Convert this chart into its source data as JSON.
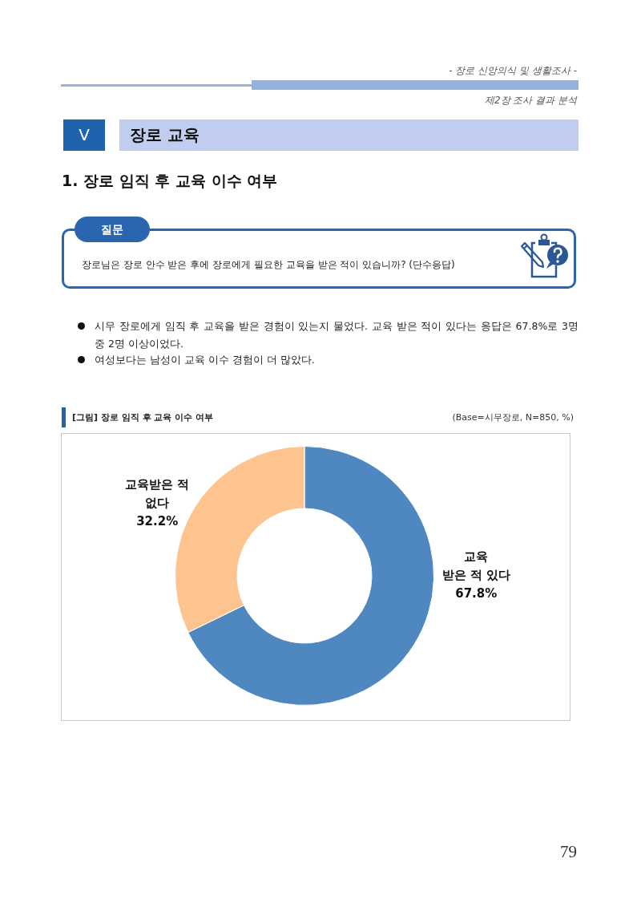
{
  "chart_data": {
    "type": "donut",
    "title": "[그림] 장로 임직 후 교육 이수 여부",
    "subtitle": "(Base=시무장로, N=850, %)",
    "categories": [
      "교육\n받은 적 있다",
      "교육받은 적\n없다"
    ],
    "values": [
      67.8,
      32.2
    ],
    "value_labels": [
      "67.8%",
      "32.2%"
    ],
    "colors": [
      "#4f88c0",
      "#fdc48f"
    ],
    "annotations": [
      "- 장로 신앙의식 및 생활조사 -",
      "제2장 조사 결과 분석",
      "V",
      "장로 교육",
      "1. 장로 임직 후 교육 이수 여부",
      "질문",
      "장로님은 장로 안수 받은 후에 장로에게 필요한 교육을 받은 적이 있습니까? (단수응답)",
      "시무 장로에게 임직 후 교육을 받은 경험이 있는지 물었다. 교육 받은 적이 있다는 응답은 67.8%로 3명 중 2명 이상이었다.",
      "여성보다는 남성이 교육 이수 경험이 더 많았다.",
      "79"
    ]
  }
}
